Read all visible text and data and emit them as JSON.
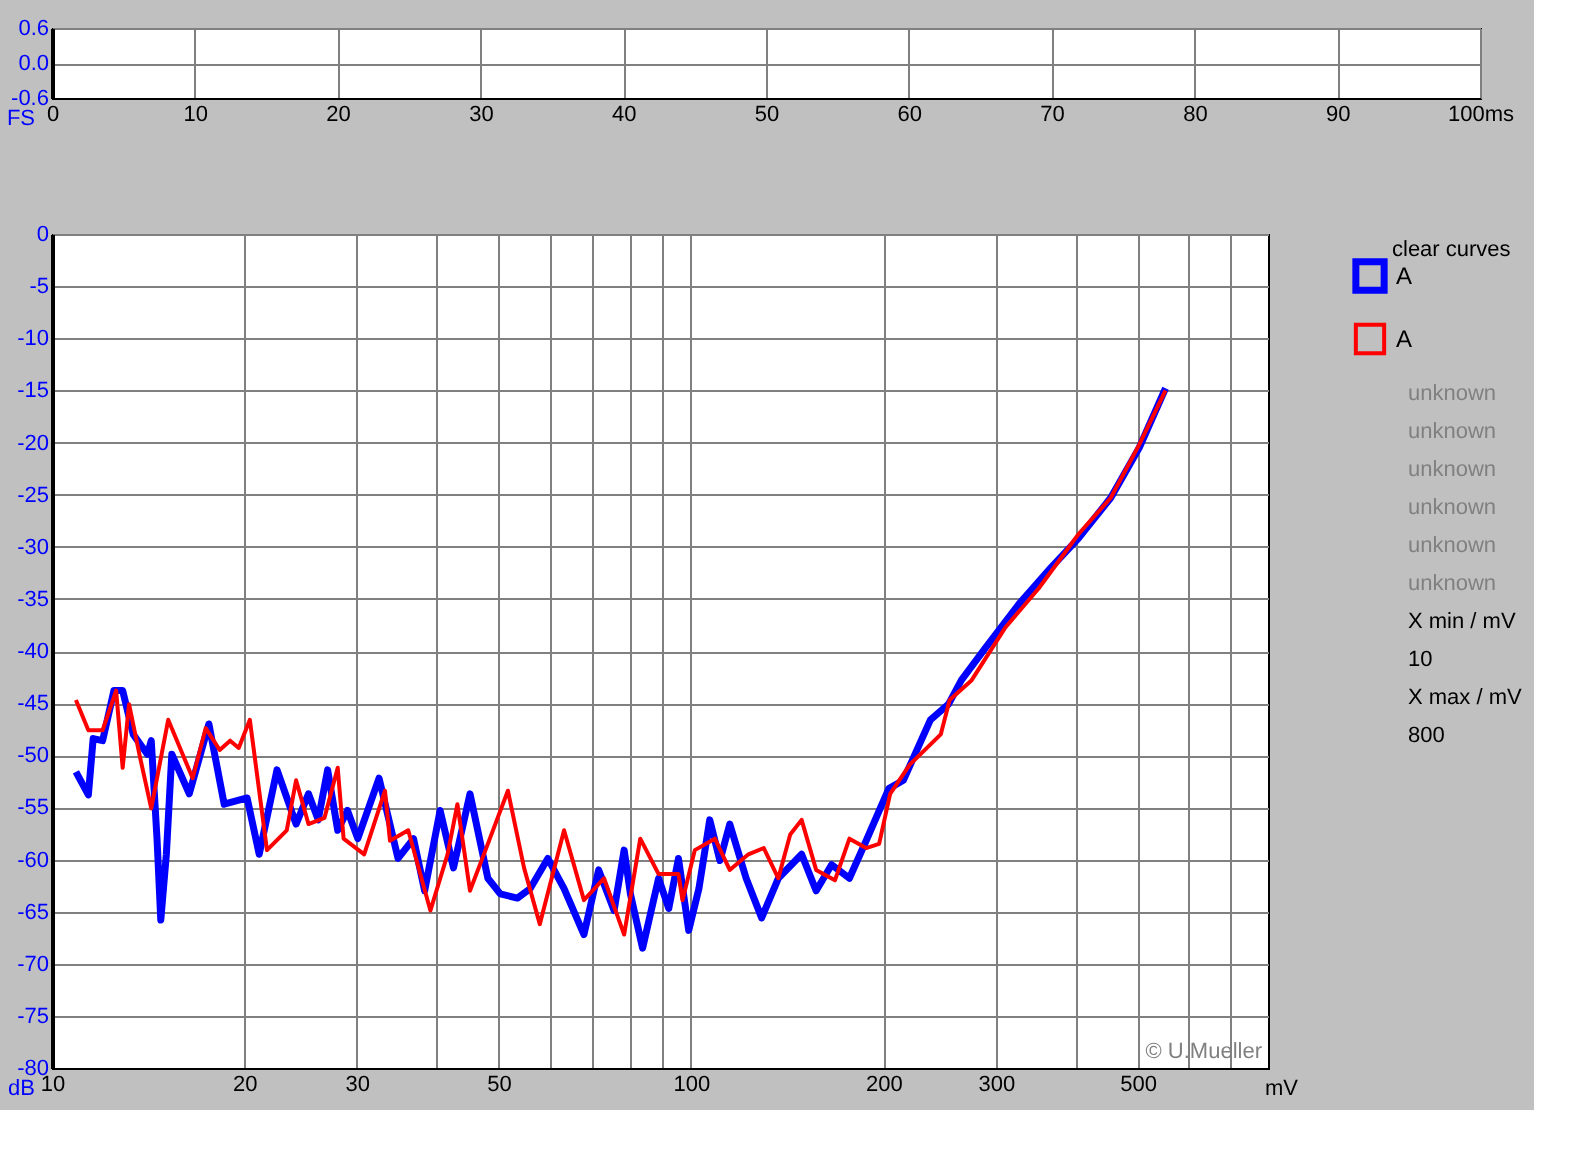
{
  "chart_data": [
    {
      "type": "line",
      "xlim": [
        0,
        100
      ],
      "ylim": [
        -0.6,
        0.6
      ],
      "ylabel": "FS",
      "grid": true,
      "xticks": [
        0,
        10,
        20,
        30,
        40,
        50,
        60,
        70,
        80,
        90,
        {
          "value": 100,
          "label": "100ms"
        }
      ],
      "yticks": [
        {
          "value": 0.6,
          "label": "0.6"
        },
        {
          "value": 0,
          "label": "0.0"
        },
        {
          "value": -0.6,
          "label": "-0.6"
        }
      ]
    },
    {
      "type": "line",
      "log": "x",
      "xlim": [
        10,
        800
      ],
      "ylim": [
        -80,
        0
      ],
      "xlabel": "mV",
      "ylabel": "dB",
      "grid": true,
      "legend": "right",
      "xticks": [
        10,
        20,
        30,
        {
          "value": 40,
          "label": null
        },
        50,
        {
          "value": 60,
          "label": null
        },
        {
          "value": 70,
          "label": null
        },
        {
          "value": 80,
          "label": null
        },
        {
          "value": 90,
          "label": null
        },
        100,
        200,
        300,
        {
          "value": 400,
          "label": null
        },
        500,
        {
          "value": 600,
          "label": null
        },
        {
          "value": 700,
          "label": null
        }
      ],
      "yticks": [
        -80,
        -75,
        -70,
        -65,
        -60,
        -55,
        -50,
        -45,
        -40,
        -35,
        -30,
        -25,
        -20,
        -15,
        -10,
        -5,
        0
      ],
      "series": [
        {
          "name": "A",
          "color": "#0000ff",
          "x": [
            10.9,
            11.4,
            11.6,
            12.0,
            12.5,
            12.9,
            13.4,
            14.1,
            14.3,
            14.6,
            14.8,
            15.1,
            15.4,
            16.4,
            17.6,
            18.6,
            20.2,
            21.1,
            22.5,
            24.1,
            25.2,
            26.1,
            27.0,
            28.0,
            29.0,
            30.1,
            32.5,
            34.8,
            36.8,
            38.3,
            40.5,
            42.5,
            45.1,
            48.1,
            50.3,
            53.5,
            56.0,
            59.7,
            63.3,
            68.0,
            71.7,
            75.8,
            78.6,
            80.4,
            84.0,
            89.0,
            92.3,
            95.6,
            99.2,
            102.9,
            107,
            111,
            115,
            122,
            129,
            137,
            149,
            157,
            166,
            177,
            188,
            204,
            215,
            237,
            253,
            265,
            289,
            326,
            366,
            404,
            454,
            503,
            553
          ],
          "values": [
            -51.6,
            -53.8,
            -48.4,
            -48.6,
            -43.8,
            -43.8,
            -48,
            -49.9,
            -48.6,
            -58,
            -65.8,
            -59.5,
            -49.9,
            -53.7,
            -47,
            -54.7,
            -54.1,
            -59.5,
            -51.4,
            -56.6,
            -53.7,
            -56.2,
            -51.4,
            -57.2,
            -55.3,
            -58,
            -52.2,
            -59.9,
            -58,
            -63,
            -55.3,
            -60.8,
            -53.7,
            -61.8,
            -63.3,
            -63.7,
            -62.8,
            -59.9,
            -62.8,
            -67.2,
            -61,
            -64.9,
            -59.1,
            -63.3,
            -68.5,
            -61.8,
            -64.7,
            -59.9,
            -66.8,
            -62.8,
            -56.2,
            -60.1,
            -56.6,
            -61.8,
            -65.6,
            -61.8,
            -59.5,
            -63,
            -60.5,
            -61.8,
            -58.2,
            -53.2,
            -52.4,
            -46.6,
            -45.1,
            -42.8,
            -39.7,
            -35.5,
            -32,
            -29.2,
            -25.3,
            -20.5,
            -14.8
          ]
        },
        {
          "name": "A",
          "color": "#ff0000",
          "x": [
            10.9,
            11.4,
            12.0,
            12.6,
            12.9,
            13.2,
            13.7,
            14.3,
            15.2,
            16.6,
            17.4,
            18.3,
            19.0,
            19.6,
            20.4,
            21.7,
            23.3,
            24.1,
            25.2,
            26.7,
            28.0,
            28.6,
            30.8,
            33.2,
            33.8,
            36.1,
            39.1,
            41.6,
            43.1,
            45.1,
            48.1,
            51.7,
            54.8,
            58.0,
            63.3,
            68.0,
            73.1,
            78.6,
            83.3,
            89.0,
            95.6,
            97.0,
            101.4,
            109,
            115,
            123,
            130,
            137,
            143,
            149,
            157,
            168,
            177,
            188,
            197,
            205,
            220,
            246,
            254,
            275,
            310,
            350,
            404,
            454,
            503,
            553
          ],
          "values": [
            -44.7,
            -47.6,
            -47.6,
            -43.8,
            -51.2,
            -45.1,
            -49.9,
            -55.1,
            -46.6,
            -52.2,
            -47.4,
            -49.5,
            -48.6,
            -49.3,
            -46.6,
            -59.1,
            -57.2,
            -52.4,
            -56.6,
            -56,
            -51.2,
            -58,
            -59.5,
            -53.4,
            -58.2,
            -57.2,
            -64.9,
            -59.5,
            -54.7,
            -63,
            -58.5,
            -53.4,
            -60.8,
            -66.2,
            -57.2,
            -63.9,
            -61.8,
            -67.2,
            -58,
            -61.4,
            -61.4,
            -63.9,
            -59.1,
            -58,
            -61,
            -59.5,
            -58.9,
            -61.8,
            -57.6,
            -56.2,
            -61,
            -62,
            -58,
            -58.9,
            -58.5,
            -53.7,
            -50.9,
            -48,
            -44.7,
            -42.8,
            -37.8,
            -34,
            -28.8,
            -25.3,
            -20.2,
            -15
          ]
        }
      ],
      "annotations": [
        "© U.Mueller",
        "clear curves",
        "unknown",
        "unknown",
        "unknown",
        "unknown",
        "unknown",
        "unknown",
        "X min / mV",
        "10",
        "X max / mV",
        "800"
      ]
    }
  ]
}
